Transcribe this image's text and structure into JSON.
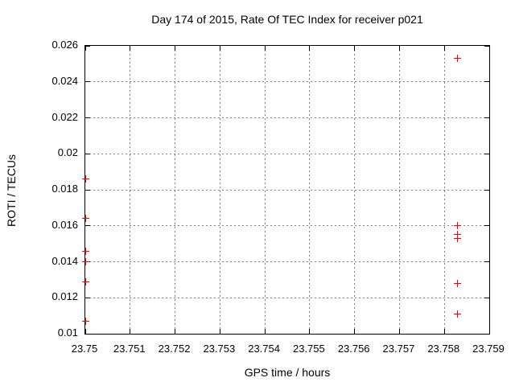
{
  "chart_data": {
    "type": "scatter",
    "title": "Day 174 of 2015, Rate Of TEC Index for receiver p021",
    "xlabel": "GPS time / hours",
    "ylabel": "ROTI / TECUs",
    "xlim": [
      23.75,
      23.759
    ],
    "ylim": [
      0.01,
      0.026
    ],
    "grid": true,
    "legend_position": "none",
    "marker": {
      "shape": "plus",
      "size": 9,
      "color": "#ff0000"
    },
    "colors": {
      "background": "#ffffff",
      "axis": "#000000",
      "grid": "#808080",
      "text": "#000000"
    },
    "xticks": {
      "values": [
        23.75,
        23.751,
        23.752,
        23.753,
        23.754,
        23.755,
        23.756,
        23.757,
        23.758,
        23.759
      ],
      "labels": [
        "23.75",
        "23.751",
        "23.752",
        "23.753",
        "23.754",
        "23.755",
        "23.756",
        "23.757",
        "23.758",
        "23.759"
      ]
    },
    "yticks": {
      "values": [
        0.01,
        0.012,
        0.014,
        0.016,
        0.018,
        0.02,
        0.022,
        0.024,
        0.026
      ],
      "labels": [
        "0.01",
        "0.012",
        "0.014",
        "0.016",
        "0.018",
        "0.02",
        "0.022",
        "0.024",
        "0.026"
      ]
    },
    "series": [
      {
        "name": "ROTI",
        "points": [
          [
            23.75,
            0.0186
          ],
          [
            23.75,
            0.0164
          ],
          [
            23.75,
            0.0146
          ],
          [
            23.75,
            0.014
          ],
          [
            23.75,
            0.0129
          ],
          [
            23.75,
            0.0107
          ],
          [
            23.7583,
            0.0253
          ],
          [
            23.7583,
            0.016
          ],
          [
            23.7583,
            0.0155
          ],
          [
            23.7583,
            0.0153
          ],
          [
            23.7583,
            0.0128
          ],
          [
            23.7583,
            0.0111
          ]
        ]
      }
    ]
  }
}
